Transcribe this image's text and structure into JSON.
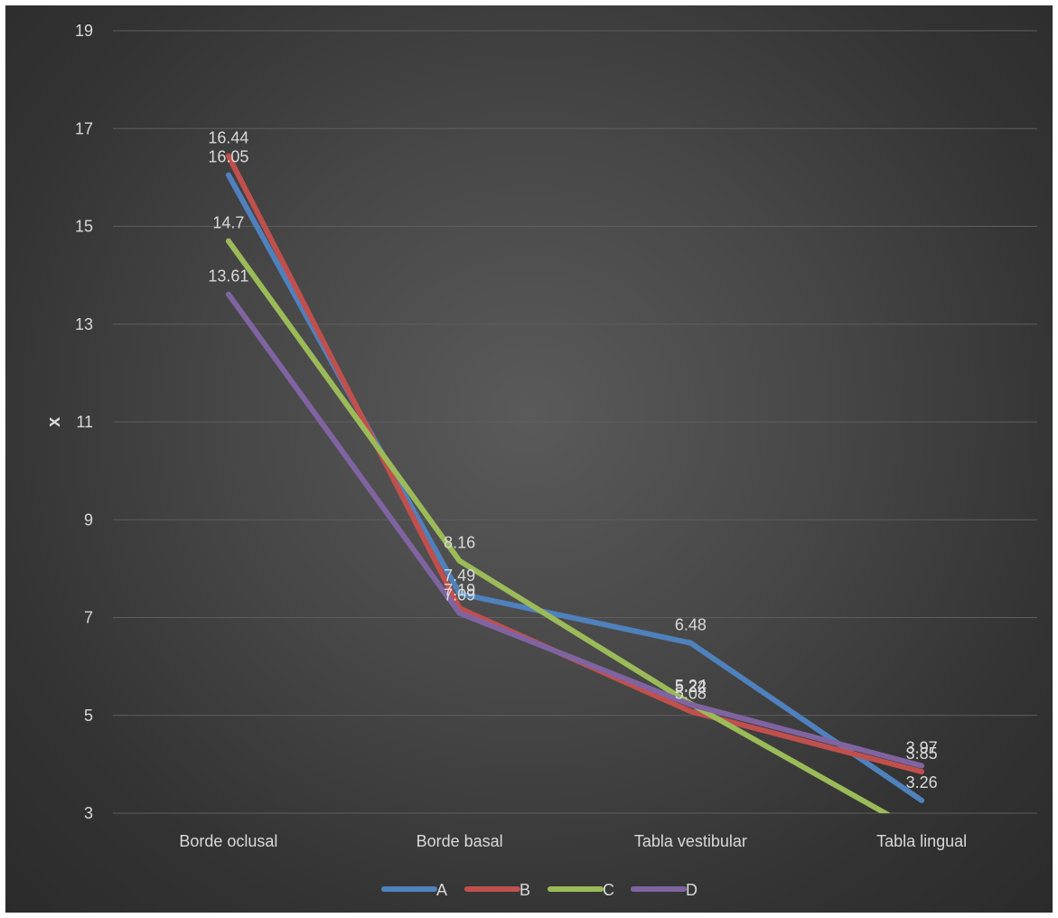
{
  "chart_data": {
    "type": "line",
    "title": "",
    "xlabel": "",
    "ylabel": "x",
    "categories": [
      "Borde oclusal",
      "Borde basal",
      "Tabla vestibular",
      "Tabla lingual"
    ],
    "ylim": [
      3,
      19
    ],
    "yticks": [
      3,
      5,
      7,
      9,
      11,
      13,
      15,
      17,
      19
    ],
    "grid": true,
    "legend_position": "bottom",
    "series": [
      {
        "name": "A",
        "color": "#4f81bd",
        "values": [
          16.05,
          7.49,
          6.48,
          3.26
        ]
      },
      {
        "name": "B",
        "color": "#c0504d",
        "values": [
          16.44,
          7.19,
          5.08,
          3.85
        ]
      },
      {
        "name": "C",
        "color": "#9bbb59",
        "values": [
          14.7,
          8.16,
          5.24,
          2.58
        ]
      },
      {
        "name": "D",
        "color": "#8064a2",
        "values": [
          13.61,
          7.09,
          5.22,
          3.97
        ]
      }
    ],
    "data_labels": [
      {
        "series": 0,
        "index": 0,
        "text": "16.05"
      },
      {
        "series": 0,
        "index": 1,
        "text": "7.49"
      },
      {
        "series": 0,
        "index": 2,
        "text": "6.48"
      },
      {
        "series": 0,
        "index": 3,
        "text": "3.26"
      },
      {
        "series": 1,
        "index": 0,
        "text": "16.44"
      },
      {
        "series": 1,
        "index": 1,
        "text": "7.19"
      },
      {
        "series": 1,
        "index": 2,
        "text": "5.08"
      },
      {
        "series": 1,
        "index": 3,
        "text": "3.85"
      },
      {
        "series": 2,
        "index": 0,
        "text": "14.7"
      },
      {
        "series": 2,
        "index": 1,
        "text": "8.16"
      },
      {
        "series": 2,
        "index": 2,
        "text": "5.24"
      },
      {
        "series": 3,
        "index": 0,
        "text": "13.61"
      },
      {
        "series": 3,
        "index": 1,
        "text": "7.09"
      },
      {
        "series": 3,
        "index": 2,
        "text": "5.22"
      },
      {
        "series": 3,
        "index": 3,
        "text": "3.97"
      }
    ]
  }
}
